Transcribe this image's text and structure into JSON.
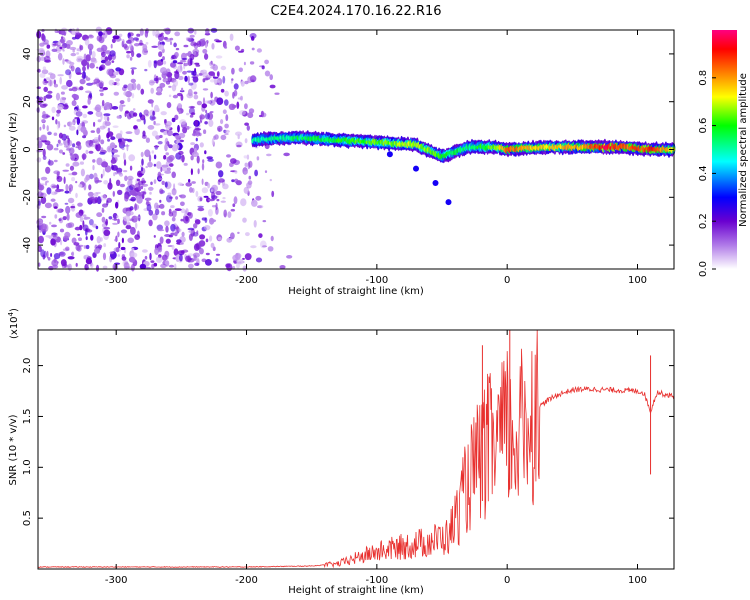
{
  "title": "C2E4.2024.170.16.22.R16",
  "chart_data": [
    {
      "type": "heatmap",
      "xlabel": "Height of straight line (km)",
      "ylabel": "Frequency (Hz)",
      "xlim": [
        -360,
        128
      ],
      "ylim": [
        -50,
        50
      ],
      "x_ticks": [
        "-300",
        "-200",
        "-100",
        "0",
        "100"
      ],
      "y_ticks": [
        "-40",
        "-20",
        "0",
        "20",
        "40"
      ],
      "colorbar": {
        "label": "Normalized spectral amplitude",
        "range": [
          0,
          1
        ],
        "ticks": [
          "0.0",
          "0.2",
          "0.4",
          "0.6",
          "0.8"
        ],
        "colors": [
          "#ffffff",
          "#6a00d0",
          "#0000ff",
          "#00ffff",
          "#00ff00",
          "#ffff00",
          "#ff7f00",
          "#ff0000",
          "#ff00a0"
        ]
      },
      "noise_region": {
        "x_range": [
          -360,
          -165
        ],
        "freq_range": [
          -50,
          50
        ],
        "amplitude": 0.1
      },
      "signal_track": [
        {
          "x": -195,
          "freq": 4,
          "amp": 0.45
        },
        {
          "x": -160,
          "freq": 5,
          "amp": 0.5
        },
        {
          "x": -130,
          "freq": 4,
          "amp": 0.55
        },
        {
          "x": -100,
          "freq": 3,
          "amp": 0.6
        },
        {
          "x": -70,
          "freq": 2,
          "amp": 0.65
        },
        {
          "x": -50,
          "freq": -3,
          "amp": 0.55
        },
        {
          "x": -30,
          "freq": 1,
          "amp": 0.5
        },
        {
          "x": -10,
          "freq": 1,
          "amp": 0.6
        },
        {
          "x": 0,
          "freq": 0,
          "amp": 0.8
        },
        {
          "x": 30,
          "freq": 1,
          "amp": 0.7
        },
        {
          "x": 60,
          "freq": 1,
          "amp": 0.75
        },
        {
          "x": 75,
          "freq": 1,
          "amp": 0.9
        },
        {
          "x": 90,
          "freq": 1,
          "amp": 0.8
        },
        {
          "x": 110,
          "freq": 0,
          "amp": 0.85
        },
        {
          "x": 128,
          "freq": 0,
          "amp": 0.7
        }
      ],
      "branch": [
        {
          "x": -90,
          "freq": -2
        },
        {
          "x": -70,
          "freq": -8
        },
        {
          "x": -55,
          "freq": -14
        },
        {
          "x": -45,
          "freq": -22
        }
      ]
    },
    {
      "type": "line",
      "xlabel": "Height of straight line (km)",
      "ylabel": "SNR (10 * v/v)",
      "y_multiplier": "(x10",
      "y_multiplier_exp": "4",
      "y_multiplier_close": ")",
      "xlim": [
        -360,
        128
      ],
      "ylim": [
        0,
        2.35
      ],
      "x_ticks": [
        "-300",
        "-200",
        "-100",
        "0",
        "100"
      ],
      "y_ticks": [
        "0.5",
        "1.0",
        "1.5",
        "2.0"
      ],
      "color": "#e8302e",
      "x": [
        -360,
        -200,
        -150,
        -130,
        -110,
        -100,
        -80,
        -60,
        -45,
        -38,
        -30,
        -22,
        -15,
        -8,
        -3,
        0,
        3,
        10,
        20,
        30,
        40,
        50,
        60,
        80,
        100,
        105,
        110,
        115,
        120,
        128
      ],
      "y": [
        0.02,
        0.02,
        0.03,
        0.05,
        0.13,
        0.17,
        0.22,
        0.27,
        0.32,
        0.55,
        0.85,
        1.05,
        1.2,
        1.25,
        1.3,
        1.4,
        1.25,
        1.35,
        1.55,
        1.65,
        1.72,
        1.76,
        1.77,
        1.76,
        1.75,
        1.73,
        1.55,
        1.74,
        1.72,
        1.7
      ],
      "spikes": [
        {
          "x": -19,
          "y": 2.2
        },
        {
          "x": 2,
          "y": 2.35
        },
        {
          "x": 110,
          "y": 2.1
        }
      ]
    }
  ]
}
